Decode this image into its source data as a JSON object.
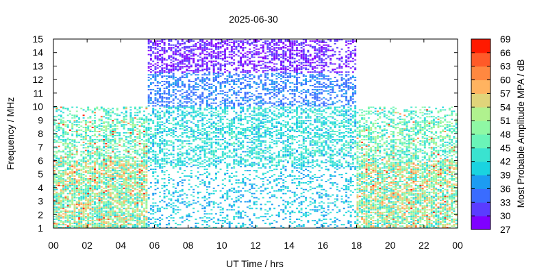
{
  "chart_data": {
    "type": "heatmap",
    "title": "2025-06-30",
    "xlabel": "UT Time / hrs",
    "ylabel": "Frequency / MHz",
    "colorbar_label": "Most Probable Amplitude MPA / dB",
    "xlim": [
      0,
      24
    ],
    "ylim": [
      1,
      15
    ],
    "x_ticks": [
      "00",
      "02",
      "04",
      "06",
      "08",
      "10",
      "12",
      "14",
      "16",
      "18",
      "20",
      "22",
      "00"
    ],
    "y_ticks": [
      "1",
      "2",
      "3",
      "4",
      "5",
      "6",
      "7",
      "8",
      "9",
      "10",
      "11",
      "12",
      "13",
      "14",
      "15"
    ],
    "colorbar": {
      "min": 27,
      "max": 69,
      "step": 3,
      "ticks": [
        "27",
        "30",
        "33",
        "36",
        "39",
        "42",
        "45",
        "48",
        "51",
        "54",
        "57",
        "60",
        "63",
        "66",
        "69"
      ],
      "colors": [
        "#7f00ff",
        "#5a3cff",
        "#3a6cff",
        "#1c9cf2",
        "#1ad3e0",
        "#3ae3d0",
        "#6af4b8",
        "#8ff8a4",
        "#b0f28e",
        "#e0d47a",
        "#ffb360",
        "#ff8840",
        "#ff5a28",
        "#ff1a00"
      ]
    },
    "regions": [
      {
        "t": [
          0,
          5.5
        ],
        "f": [
          1,
          10
        ],
        "band": "night"
      },
      {
        "t": [
          5.5,
          18
        ],
        "f": [
          1,
          15
        ],
        "band": "day"
      },
      {
        "t": [
          18,
          24
        ],
        "f": [
          1,
          10
        ],
        "band": "night"
      }
    ],
    "grid": false
  }
}
